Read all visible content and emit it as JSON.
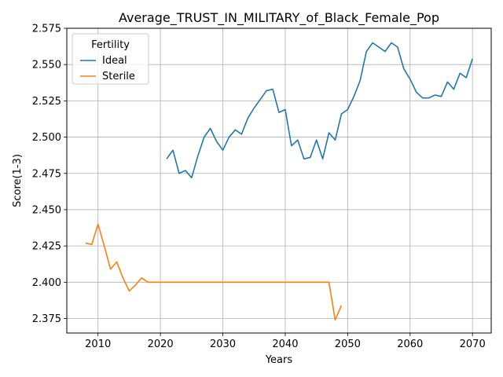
{
  "chart_data": {
    "type": "line",
    "title": "Average_TRUST_IN_MILITARY_of_Black_Female_Pop",
    "xlabel": "Years",
    "ylabel": "Score(1-3)",
    "xlim": [
      2005,
      2073
    ],
    "ylim": [
      2.365,
      2.575
    ],
    "xticks": [
      2010,
      2020,
      2030,
      2040,
      2050,
      2060,
      2070
    ],
    "yticks": [
      2.375,
      2.4,
      2.425,
      2.45,
      2.475,
      2.5,
      2.525,
      2.55,
      2.575
    ],
    "grid": true,
    "legend": {
      "title": "Fertility",
      "placement": "top-left"
    },
    "series": [
      {
        "name": "Ideal",
        "color": "#1f77b4",
        "x": [
          2021,
          2022,
          2023,
          2024,
          2025,
          2026,
          2027,
          2028,
          2029,
          2030,
          2031,
          2032,
          2033,
          2034,
          2035,
          2036,
          2037,
          2038,
          2039,
          2040,
          2041,
          2042,
          2043,
          2044,
          2045,
          2046,
          2047,
          2048,
          2049,
          2050,
          2051,
          2052,
          2053,
          2054,
          2055,
          2056,
          2057,
          2058,
          2059,
          2060,
          2061,
          2062,
          2063,
          2064,
          2065,
          2066,
          2067,
          2068,
          2069,
          2070
        ],
        "y": [
          2.485,
          2.491,
          2.475,
          2.477,
          2.472,
          2.487,
          2.5,
          2.506,
          2.497,
          2.491,
          2.5,
          2.505,
          2.502,
          2.513,
          2.52,
          2.526,
          2.532,
          2.533,
          2.517,
          2.519,
          2.494,
          2.498,
          2.485,
          2.486,
          2.498,
          2.485,
          2.503,
          2.498,
          2.516,
          2.519,
          2.528,
          2.539,
          2.559,
          2.565,
          2.562,
          2.559,
          2.565,
          2.562,
          2.547,
          2.54,
          2.531,
          2.527,
          2.527,
          2.529,
          2.528,
          2.538,
          2.533,
          2.544,
          2.541,
          2.554
        ]
      },
      {
        "name": "Sterile",
        "color": "#ff7f0e",
        "x": [
          2008,
          2009,
          2010,
          2011,
          2012,
          2013,
          2014,
          2015,
          2016,
          2017,
          2018,
          2019,
          2020,
          2021,
          2022,
          2023,
          2024,
          2025,
          2026,
          2027,
          2028,
          2029,
          2030,
          2031,
          2032,
          2033,
          2034,
          2035,
          2036,
          2037,
          2038,
          2039,
          2040,
          2041,
          2042,
          2043,
          2044,
          2045,
          2046,
          2047,
          2048,
          2049
        ],
        "y": [
          2.427,
          2.426,
          2.44,
          2.425,
          2.409,
          2.414,
          2.403,
          2.394,
          2.398,
          2.403,
          2.4,
          2.4,
          2.4,
          2.4,
          2.4,
          2.4,
          2.4,
          2.4,
          2.4,
          2.4,
          2.4,
          2.4,
          2.4,
          2.4,
          2.4,
          2.4,
          2.4,
          2.4,
          2.4,
          2.4,
          2.4,
          2.4,
          2.4,
          2.4,
          2.4,
          2.4,
          2.4,
          2.4,
          2.4,
          2.4,
          2.374,
          2.384
        ]
      }
    ]
  }
}
